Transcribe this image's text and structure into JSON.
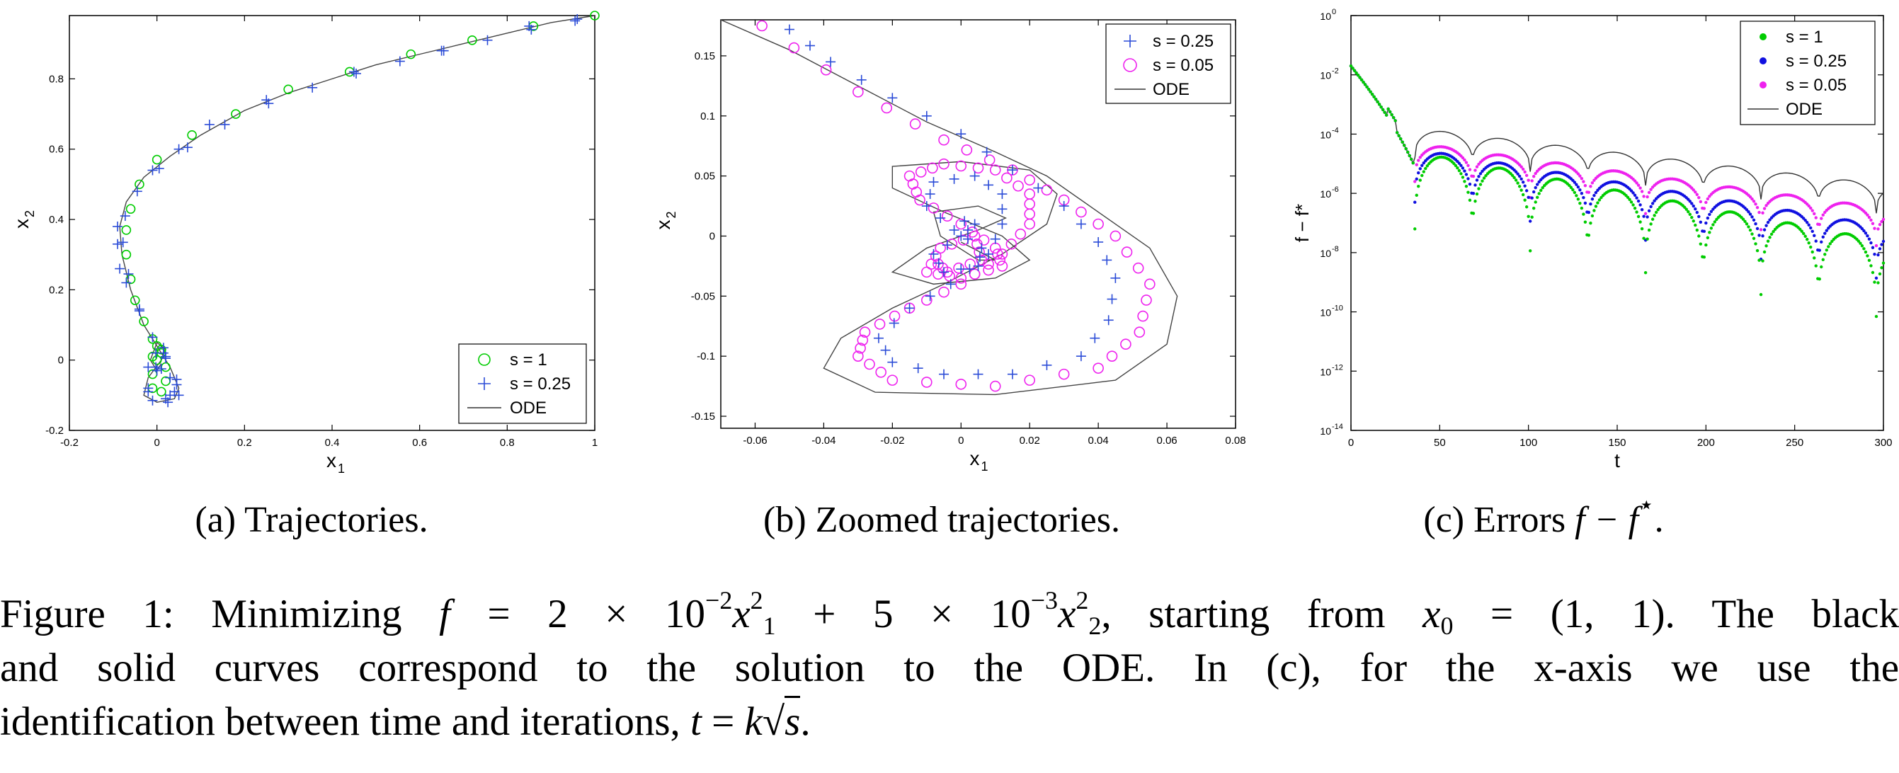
{
  "panels": [
    {
      "id": "a",
      "xlabel": "x",
      "xlabel_sub": "1",
      "ylabel": "x",
      "ylabel_sub": "2",
      "xticks": [
        "-0.2",
        "0",
        "0.2",
        "0.4",
        "0.6",
        "0.8",
        "1"
      ],
      "yticks": [
        "-0.2",
        "0",
        "0.2",
        "0.4",
        "0.6",
        "0.8"
      ],
      "legend": [
        {
          "label": "s = 1",
          "marker": "circle",
          "color": "#00cc00"
        },
        {
          "label": "s = 0.25",
          "marker": "plus",
          "color": "#2a4bd7"
        },
        {
          "label": "ODE",
          "marker": "line",
          "color": "#333333"
        }
      ],
      "caption": "(a) Trajectories."
    },
    {
      "id": "b",
      "xlabel": "x",
      "xlabel_sub": "1",
      "ylabel": "x",
      "ylabel_sub": "2",
      "xticks": [
        "-0.06",
        "-0.04",
        "-0.02",
        "0",
        "0.02",
        "0.04",
        "0.06",
        "0.08"
      ],
      "yticks": [
        "-0.15",
        "-0.1",
        "-0.05",
        "0",
        "0.05",
        "0.1",
        "0.15"
      ],
      "legend": [
        {
          "label": "s = 0.25",
          "marker": "plus",
          "color": "#2a4bd7"
        },
        {
          "label": "s = 0.05",
          "marker": "circle",
          "color": "#ee22ee"
        },
        {
          "label": "ODE",
          "marker": "line",
          "color": "#333333"
        }
      ],
      "caption": "(b) Zoomed trajectories."
    },
    {
      "id": "c",
      "xlabel": "t",
      "ylabel": "f − f*",
      "xticks": [
        "0",
        "50",
        "100",
        "150",
        "200",
        "250",
        "300"
      ],
      "yticks": [
        "10^-14",
        "10^-12",
        "10^-10",
        "10^-8",
        "10^-6",
        "10^-4",
        "10^-2",
        "10^0"
      ],
      "legend": [
        {
          "label": "s = 1",
          "marker": "dot",
          "color": "#00cc00"
        },
        {
          "label": "s = 0.25",
          "marker": "dot",
          "color": "#1010e0"
        },
        {
          "label": "s = 0.05",
          "marker": "dot",
          "color": "#ee22ee"
        },
        {
          "label": "ODE",
          "marker": "line",
          "color": "#333333"
        }
      ],
      "caption_prefix": "(c) Errors ",
      "caption_math": "f − f",
      "caption_sup": "⋆",
      "caption_suffix": "."
    }
  ],
  "figure_caption": {
    "line1_a": "Figure 1: Minimizing ",
    "line1_math1": "f",
    "line1_eq": " = 2 × 10",
    "line1_exp1": "−2",
    "line1_math2": "x",
    "line1_sup2": "2",
    "line1_sub2": "1",
    "line1_plus": " + 5 × 10",
    "line1_exp2": "−3",
    "line1_math3": "x",
    "line1_sup3": "2",
    "line1_sub3": "2",
    "line1_b": ", starting from ",
    "line1_math4": "x",
    "line1_sub4": "0",
    "line1_c": " = (1, 1). The black",
    "line2": "and solid curves correspond to the solution to the ODE. In (c), for the x-axis we use the",
    "line3_a": "identification between time and iterations, ",
    "line3_math": "t",
    "line3_eq": " = ",
    "line3_k": "k",
    "line3_sqrt_prefix": "√",
    "line3_s": "s",
    "line3_end": "."
  }
}
